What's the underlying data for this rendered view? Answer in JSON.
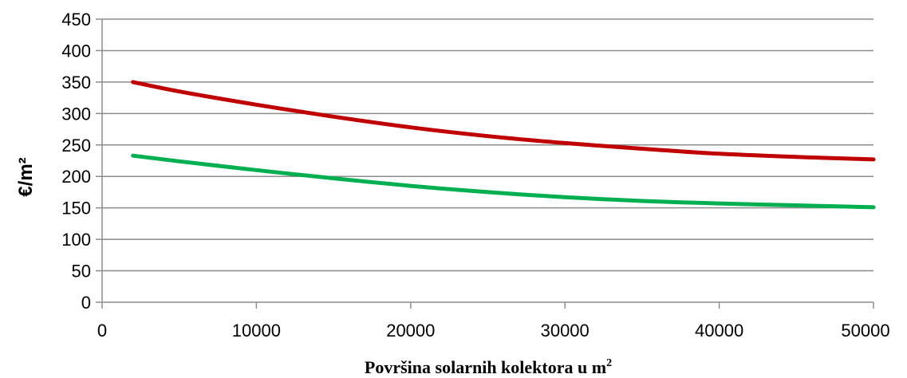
{
  "chart_data": {
    "type": "line",
    "title": "",
    "xlabel": "Površina solarnih kolektora u m",
    "xlabel_sup": "2",
    "ylabel": "€/m²",
    "xlim": [
      0,
      50000
    ],
    "ylim": [
      0,
      450
    ],
    "x_ticks": [
      0,
      10000,
      20000,
      30000,
      40000,
      50000
    ],
    "y_ticks": [
      0,
      50,
      100,
      150,
      200,
      250,
      300,
      350,
      400,
      450
    ],
    "grid": "horizontal",
    "legend": "none",
    "series": [
      {
        "color": "#c00000",
        "x": [
          2000,
          5000,
          10000,
          15000,
          20000,
          25000,
          30000,
          35000,
          40000,
          45000,
          50000
        ],
        "values": [
          350,
          335,
          314,
          295,
          278,
          264,
          253,
          244,
          236,
          231,
          227
        ]
      },
      {
        "color": "#00b050",
        "x": [
          2000,
          5000,
          10000,
          15000,
          20000,
          25000,
          30000,
          35000,
          40000,
          45000,
          50000
        ],
        "values": [
          233,
          224,
          210,
          197,
          185,
          175,
          167,
          161,
          157,
          154,
          151
        ]
      }
    ]
  }
}
